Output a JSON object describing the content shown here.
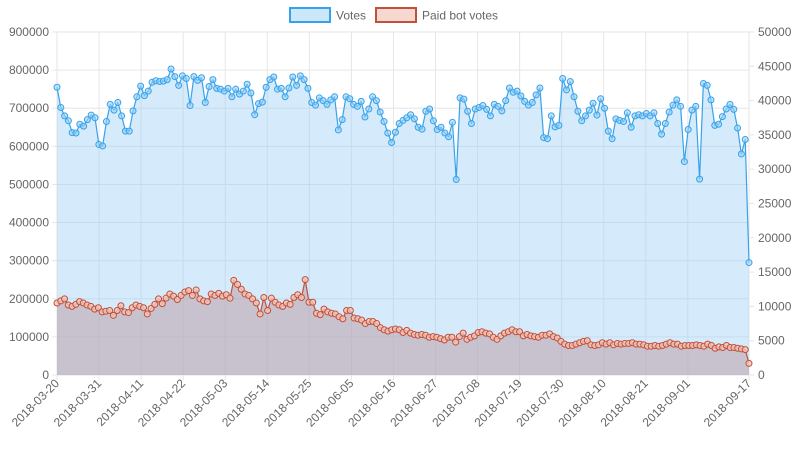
{
  "chart_data": {
    "type": "line",
    "legend_position": "top",
    "grid": true,
    "colors": {
      "votes_line": "#36a2eb",
      "votes_fill": "#9ad0f5",
      "paid_line": "#c0503a",
      "paid_fill": "#f4c7bc",
      "grid": "#e6e6e6",
      "axis_text": "#666666"
    },
    "x_ticks": [
      "2018-03-20",
      "2018-03-31",
      "2018-04-11",
      "2018-04-22",
      "2018-05-03",
      "2018-05-14",
      "2018-05-25",
      "2018-06-05",
      "2018-06-16",
      "2018-06-27",
      "2018-07-08",
      "2018-07-19",
      "2018-07-30",
      "2018-08-10",
      "2018-08-21",
      "2018-09-01",
      "2018-09-17"
    ],
    "x_start": "2018-03-20",
    "x_end": "2018-09-17",
    "y_left": {
      "min": 0,
      "max": 900000,
      "step": 100000,
      "ticks": [
        "0",
        "100000",
        "200000",
        "300000",
        "400000",
        "500000",
        "600000",
        "700000",
        "800000",
        "900000"
      ]
    },
    "y_right": {
      "min": 0,
      "max": 50000,
      "step": 5000,
      "ticks": [
        "0",
        "5000",
        "10000",
        "15000",
        "20000",
        "25000",
        "30000",
        "35000",
        "40000",
        "45000",
        "50000"
      ]
    },
    "series": [
      {
        "name": "Votes",
        "axis": "left",
        "values": [
          755000,
          702000,
          680000,
          667000,
          636000,
          635000,
          658000,
          653000,
          670000,
          682000,
          675000,
          605000,
          601000,
          665000,
          710000,
          695000,
          715000,
          680000,
          640000,
          640000,
          693000,
          730000,
          758000,
          733000,
          745000,
          768000,
          772000,
          770000,
          771000,
          775000,
          803000,
          783000,
          760000,
          785000,
          778000,
          707000,
          783000,
          773000,
          780000,
          715000,
          757000,
          775000,
          752000,
          750000,
          745000,
          752000,
          730000,
          750000,
          737000,
          745000,
          763000,
          740000,
          683000,
          712000,
          716000,
          755000,
          775000,
          782000,
          750000,
          752000,
          730000,
          753000,
          782000,
          760000,
          785000,
          775000,
          752000,
          715000,
          708000,
          727000,
          720000,
          710000,
          722000,
          730000,
          643000,
          670000,
          730000,
          725000,
          710000,
          705000,
          718000,
          677000,
          698000,
          730000,
          720000,
          690000,
          665000,
          635000,
          610000,
          637000,
          660000,
          668000,
          675000,
          683000,
          672000,
          650000,
          645000,
          692000,
          698000,
          667000,
          644000,
          650000,
          635000,
          625000,
          663000,
          513000,
          727000,
          724000,
          692000,
          660000,
          698000,
          702000,
          707000,
          697000,
          680000,
          710000,
          705000,
          693000,
          720000,
          753000,
          742000,
          745000,
          732000,
          718000,
          708000,
          715000,
          735000,
          753000,
          623000,
          620000,
          680000,
          651000,
          655000,
          778000,
          748000,
          770000,
          730000,
          692000,
          667000,
          680000,
          695000,
          713000,
          682000,
          725000,
          700000,
          640000,
          620000,
          672000,
          668000,
          665000,
          688000,
          650000,
          680000,
          683000,
          680000,
          686000,
          680000,
          688000,
          660000,
          632000,
          660000,
          690000,
          708000,
          722000,
          705000,
          560000,
          644000,
          695000,
          705000,
          514000,
          765000,
          760000,
          722000,
          655000,
          658000,
          678000,
          698000,
          710000,
          697000,
          648000,
          580000,
          618000,
          295000
        ]
      },
      {
        "name": "Paid bot votes",
        "axis": "right",
        "values": [
          10500,
          10800,
          11100,
          10200,
          10000,
          10300,
          10700,
          10500,
          10200,
          10000,
          9600,
          9800,
          9200,
          9300,
          9400,
          8700,
          9400,
          10100,
          9200,
          9100,
          9800,
          10200,
          10000,
          9800,
          8900,
          9700,
          10300,
          11100,
          10400,
          11200,
          11800,
          11500,
          11000,
          11600,
          12100,
          12300,
          11600,
          12400,
          11100,
          10800,
          10700,
          11800,
          11600,
          11900,
          11500,
          11700,
          11200,
          13800,
          13200,
          12500,
          11800,
          11600,
          11100,
          10500,
          8900,
          11300,
          9400,
          11200,
          10600,
          10200,
          10000,
          10500,
          10300,
          11300,
          11700,
          11300,
          13900,
          10600,
          10600,
          9000,
          8800,
          9600,
          9200,
          9000,
          8900,
          8500,
          8200,
          9400,
          9400,
          8300,
          8200,
          8000,
          7500,
          7800,
          7800,
          7500,
          6900,
          6600,
          6400,
          6600,
          6700,
          6600,
          6200,
          6500,
          6100,
          5900,
          5800,
          5900,
          5800,
          5500,
          5600,
          5500,
          5300,
          5100,
          5500,
          5500,
          4800,
          5600,
          6100,
          5200,
          5500,
          5700,
          6200,
          6300,
          6100,
          6000,
          5500,
          5200,
          5700,
          6100,
          6300,
          6600,
          6300,
          6300,
          5700,
          5900,
          5700,
          5600,
          5500,
          5800,
          5800,
          6000,
          5600,
          5400,
          4900,
          4500,
          4300,
          4300,
          4500,
          4700,
          4900,
          5000,
          4400,
          4300,
          4400,
          4700,
          4500,
          4700,
          4400,
          4600,
          4500,
          4600,
          4600,
          4700,
          4500,
          4500,
          4400,
          4200,
          4200,
          4300,
          4200,
          4300,
          4500,
          4700,
          4500,
          4500,
          4200,
          4300,
          4300,
          4300,
          4400,
          4300,
          4200,
          4500,
          4300,
          3900,
          4100,
          4000,
          4300,
          4000,
          4000,
          3900,
          3800,
          3700,
          1700
        ]
      }
    ]
  }
}
